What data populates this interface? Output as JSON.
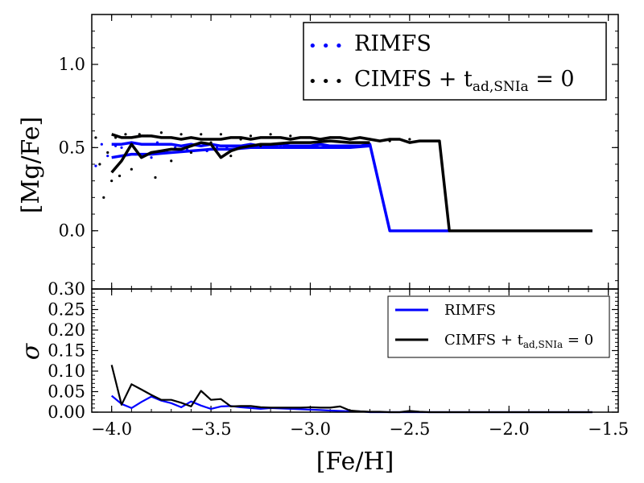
{
  "chart_data": [
    {
      "type": "line",
      "panel": "top",
      "ylabel": "[Mg/Fe]",
      "xlim": [
        -4.1,
        -1.45
      ],
      "ylim": [
        -0.35,
        1.3
      ],
      "yticks": [
        0.0,
        0.5,
        1.0
      ],
      "ytick_labels": [
        "0.0",
        "0.5",
        "1.0"
      ],
      "legend": {
        "placement": "top-right",
        "entries": [
          {
            "marker": "• • •",
            "label": "RIMFS",
            "color": "#0000ff"
          },
          {
            "marker": "• • •",
            "label": "CIMFS + t",
            "subscript": "ad,SNIa",
            "suffix": " = 0",
            "color": "#000000"
          }
        ]
      },
      "series": [
        {
          "name": "RIMFS",
          "color": "#0000ff",
          "upper": {
            "x": [
              -4.0,
              -3.95,
              -3.9,
              -3.85,
              -3.8,
              -3.75,
              -3.7,
              -3.65,
              -3.6,
              -3.55,
              -3.5,
              -3.45,
              -3.4,
              -3.35,
              -3.3,
              -3.25,
              -3.2,
              -3.15,
              -3.1,
              -3.05,
              -3.0,
              -2.95,
              -2.9,
              -2.85,
              -2.8,
              -2.75,
              -2.7,
              -2.6,
              -2.5,
              -2.4,
              -2.3,
              -2.2,
              -2.1,
              -2.0,
              -1.9,
              -1.8,
              -1.7,
              -1.58
            ],
            "y": [
              0.52,
              0.52,
              0.53,
              0.52,
              0.52,
              0.52,
              0.52,
              0.51,
              0.52,
              0.51,
              0.52,
              0.51,
              0.51,
              0.51,
              0.52,
              0.51,
              0.51,
              0.52,
              0.51,
              0.51,
              0.51,
              0.52,
              0.51,
              0.51,
              0.51,
              0.51,
              0.52,
              0.0,
              0.0,
              0.0,
              0.0,
              0.0,
              0.0,
              0.0,
              0.0,
              0.0,
              0.0,
              0.0
            ]
          },
          "lower": {
            "x": [
              -4.0,
              -3.9,
              -3.8,
              -3.7,
              -3.6,
              -3.5,
              -3.4,
              -3.3,
              -3.2,
              -3.1,
              -3.0,
              -2.9,
              -2.8,
              -2.7
            ],
            "y": [
              0.44,
              0.46,
              0.46,
              0.47,
              0.48,
              0.49,
              0.49,
              0.5,
              0.5,
              0.5,
              0.5,
              0.5,
              0.5,
              0.51
            ]
          },
          "scatter": {
            "x": [
              -4.08,
              -4.05,
              -4.02,
              -3.98,
              -3.95,
              -3.92,
              -3.88,
              -3.85,
              -3.8,
              -3.77,
              -3.72,
              -3.68,
              -3.62,
              -3.58,
              -3.52,
              -3.47,
              -3.42,
              -3.36,
              -3.3,
              -3.22,
              -3.15,
              -3.08
            ],
            "y": [
              0.39,
              0.52,
              0.45,
              0.51,
              0.5,
              0.48,
              0.46,
              0.52,
              0.44,
              0.53,
              0.47,
              0.5,
              0.49,
              0.52,
              0.48,
              0.5,
              0.5,
              0.51,
              0.5,
              0.52,
              0.51,
              0.51
            ]
          }
        },
        {
          "name": "CIMFS + t_ad,SNIa = 0",
          "color": "#000000",
          "upper": {
            "x": [
              -4.0,
              -3.95,
              -3.9,
              -3.85,
              -3.8,
              -3.75,
              -3.7,
              -3.65,
              -3.6,
              -3.55,
              -3.5,
              -3.45,
              -3.4,
              -3.35,
              -3.3,
              -3.25,
              -3.2,
              -3.15,
              -3.1,
              -3.05,
              -3.0,
              -2.95,
              -2.9,
              -2.85,
              -2.8,
              -2.75,
              -2.7,
              -2.65,
              -2.6,
              -2.55,
              -2.5,
              -2.45,
              -2.4,
              -2.35,
              -2.3,
              -2.2,
              -2.1,
              -2.0,
              -1.9,
              -1.8,
              -1.7,
              -1.58
            ],
            "y": [
              0.58,
              0.56,
              0.56,
              0.57,
              0.57,
              0.56,
              0.56,
              0.55,
              0.56,
              0.55,
              0.55,
              0.55,
              0.56,
              0.56,
              0.55,
              0.56,
              0.56,
              0.56,
              0.55,
              0.56,
              0.56,
              0.55,
              0.56,
              0.56,
              0.55,
              0.56,
              0.55,
              0.54,
              0.55,
              0.55,
              0.53,
              0.54,
              0.54,
              0.54,
              0.0,
              0.0,
              0.0,
              0.0,
              0.0,
              0.0,
              0.0,
              0.0
            ]
          },
          "lower": {
            "x": [
              -4.0,
              -3.95,
              -3.9,
              -3.85,
              -3.8,
              -3.75,
              -3.7,
              -3.65,
              -3.6,
              -3.55,
              -3.5,
              -3.45,
              -3.4,
              -3.35,
              -3.3,
              -3.25,
              -3.2,
              -3.1,
              -3.0,
              -2.9,
              -2.8,
              -2.7
            ],
            "y": [
              0.35,
              0.42,
              0.52,
              0.44,
              0.47,
              0.48,
              0.49,
              0.49,
              0.51,
              0.53,
              0.52,
              0.44,
              0.48,
              0.5,
              0.51,
              0.52,
              0.52,
              0.53,
              0.53,
              0.54,
              0.53,
              0.53
            ]
          },
          "scatter": {
            "x": [
              -4.08,
              -4.06,
              -4.04,
              -4.02,
              -4.0,
              -3.98,
              -3.96,
              -3.93,
              -3.9,
              -3.86,
              -3.82,
              -3.78,
              -3.75,
              -3.7,
              -3.65,
              -3.6,
              -3.55,
              -3.5,
              -3.45,
              -3.4,
              -3.35,
              -3.3,
              -3.25,
              -3.2,
              -3.1,
              -3.0,
              -2.9,
              -2.8,
              -2.7,
              -2.6,
              -2.5,
              -2.45
            ],
            "y": [
              0.56,
              0.4,
              0.2,
              0.47,
              0.3,
              0.56,
              0.33,
              0.58,
              0.37,
              0.58,
              0.57,
              0.32,
              0.59,
              0.42,
              0.58,
              0.47,
              0.58,
              0.53,
              0.58,
              0.45,
              0.55,
              0.57,
              0.51,
              0.58,
              0.57,
              0.56,
              0.56,
              0.55,
              0.55,
              0.54,
              0.55,
              0.54
            ]
          }
        }
      ]
    },
    {
      "type": "line",
      "panel": "bottom",
      "xlabel": "[Fe/H]",
      "ylabel": "σ",
      "xlim": [
        -4.1,
        -1.45
      ],
      "ylim": [
        0.0,
        0.3
      ],
      "xticks": [
        -4.0,
        -3.5,
        -3.0,
        -2.5,
        -2.0,
        -1.5
      ],
      "xtick_labels": [
        "−4.0",
        "−3.5",
        "−3.0",
        "−2.5",
        "−2.0",
        "−1.5"
      ],
      "yticks": [
        0.0,
        0.05,
        0.1,
        0.15,
        0.2,
        0.25,
        0.3
      ],
      "ytick_labels": [
        "0.00",
        "0.05",
        "0.10",
        "0.15",
        "0.20",
        "0.25",
        "0.30"
      ],
      "legend": {
        "placement": "top-right",
        "entries": [
          {
            "marker": "line",
            "label": "RIMFS",
            "color": "#0000ff"
          },
          {
            "marker": "line",
            "label": "CIMFS + t",
            "subscript": "ad,SNIa",
            "suffix": " = 0",
            "color": "#000000"
          }
        ]
      },
      "series": [
        {
          "name": "RIMFS",
          "color": "#0000ff",
          "x": [
            -4.0,
            -3.95,
            -3.9,
            -3.85,
            -3.8,
            -3.75,
            -3.7,
            -3.65,
            -3.6,
            -3.55,
            -3.5,
            -3.45,
            -3.4,
            -3.35,
            -3.3,
            -3.25,
            -3.2,
            -3.15,
            -3.1,
            -3.05,
            -3.0,
            -2.95,
            -2.9,
            -2.85,
            -2.8,
            -2.75,
            -2.7,
            -2.6,
            -2.5,
            -2.4,
            -2.3,
            -2.2,
            -2.1,
            -2.0,
            -1.9,
            -1.8,
            -1.7,
            -1.58
          ],
          "y": [
            0.04,
            0.02,
            0.01,
            0.025,
            0.038,
            0.028,
            0.022,
            0.012,
            0.026,
            0.016,
            0.008,
            0.014,
            0.015,
            0.012,
            0.01,
            0.008,
            0.01,
            0.009,
            0.008,
            0.007,
            0.006,
            0.005,
            0.004,
            0.003,
            0.002,
            0.002,
            0.0,
            0.0,
            0.0,
            0.0,
            0.0,
            0.0,
            0.0,
            0.0,
            0.0,
            0.0,
            0.0,
            0.0
          ]
        },
        {
          "name": "CIMFS + t_ad,SNIa = 0",
          "color": "#000000",
          "x": [
            -4.0,
            -3.95,
            -3.9,
            -3.85,
            -3.8,
            -3.75,
            -3.7,
            -3.65,
            -3.6,
            -3.55,
            -3.5,
            -3.45,
            -3.4,
            -3.35,
            -3.3,
            -3.25,
            -3.2,
            -3.15,
            -3.1,
            -3.05,
            -3.0,
            -2.95,
            -2.9,
            -2.85,
            -2.8,
            -2.75,
            -2.7,
            -2.65,
            -2.6,
            -2.55,
            -2.5,
            -2.45,
            -2.4,
            -2.3,
            -2.2,
            -2.1,
            -2.0,
            -1.9,
            -1.8,
            -1.7,
            -1.58
          ],
          "y": [
            0.115,
            0.018,
            0.068,
            0.055,
            0.042,
            0.03,
            0.03,
            0.023,
            0.014,
            0.052,
            0.03,
            0.032,
            0.014,
            0.015,
            0.015,
            0.012,
            0.011,
            0.011,
            0.011,
            0.011,
            0.012,
            0.011,
            0.011,
            0.014,
            0.004,
            0.002,
            0.001,
            0.001,
            0.0,
            0.0,
            0.003,
            0.001,
            0.0,
            0.0,
            0.0,
            0.0,
            0.0,
            0.0,
            0.0,
            0.0,
            0.0
          ]
        }
      ]
    }
  ]
}
